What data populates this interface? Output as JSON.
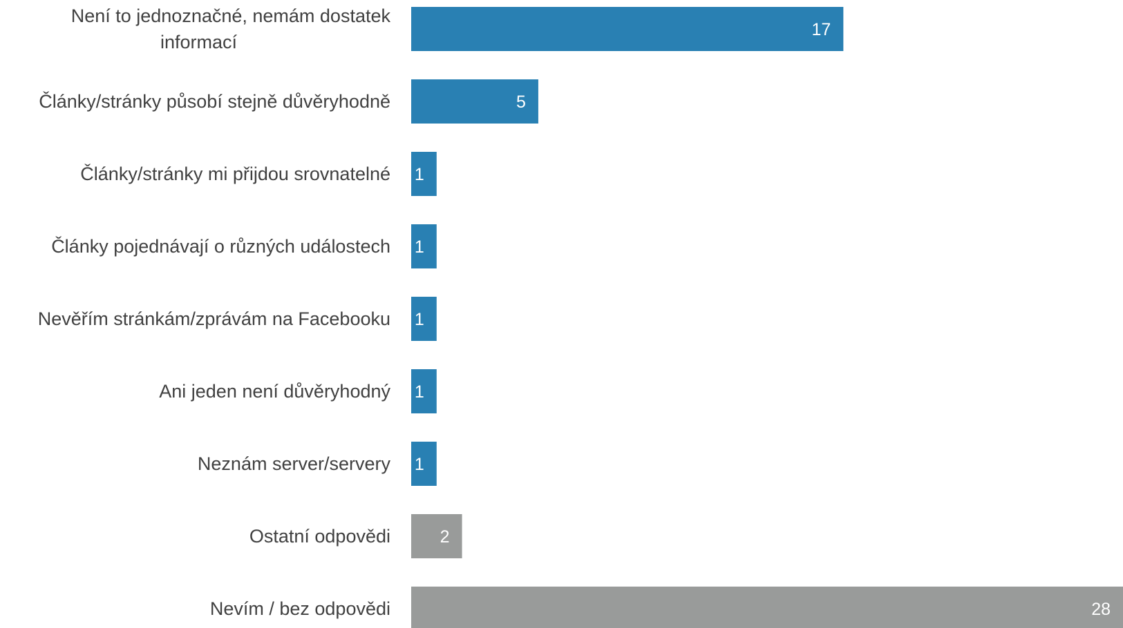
{
  "chart_data": {
    "type": "bar",
    "orientation": "horizontal",
    "categories": [
      [
        "Není to jednoznačné, nemám dostatek",
        "informací"
      ],
      [
        "Články/stránky působí stejně důvěryhodně"
      ],
      [
        "Články/stránky mi přijdou srovnatelné"
      ],
      [
        "Články pojednávají o různých událostech"
      ],
      [
        "Nevěřím stránkám/zprávám na Facebooku"
      ],
      [
        "Ani jeden není důvěryhodný"
      ],
      [
        "Neznám server/servery"
      ],
      [
        "Ostatní odpovědi"
      ],
      [
        "Nevím / bez odpovědi"
      ]
    ],
    "values": [
      17,
      5,
      1,
      1,
      1,
      1,
      1,
      2,
      28
    ],
    "value_labels": [
      "17",
      "5",
      "1",
      "1",
      "1",
      "1",
      "1",
      "2",
      "28"
    ],
    "bar_colors": [
      "#2980b3",
      "#2980b3",
      "#2980b3",
      "#2980b3",
      "#2980b3",
      "#2980b3",
      "#2980b3",
      "#999b9a",
      "#999b9a"
    ],
    "xlim": [
      0,
      28
    ],
    "grid": false,
    "legend": "none",
    "title": "",
    "xlabel": "",
    "ylabel": ""
  }
}
